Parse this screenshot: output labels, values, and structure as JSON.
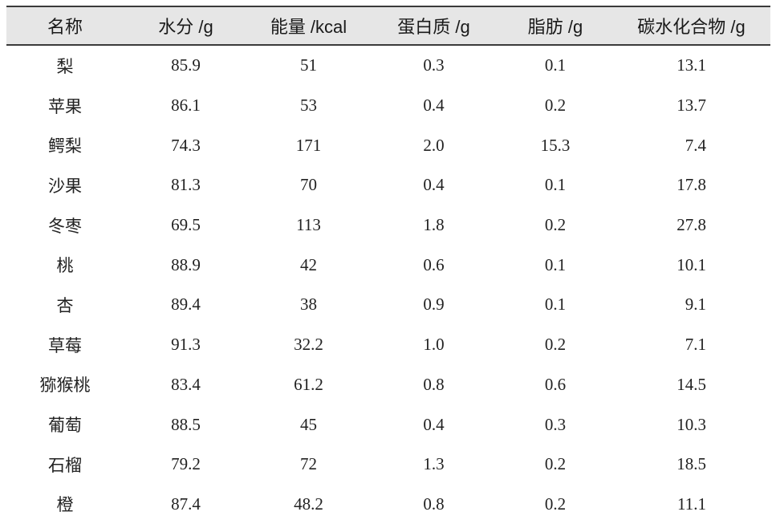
{
  "table": {
    "headers": [
      "名称",
      "水分 /g",
      "能量 /kcal",
      "蛋白质 /g",
      "脂肪 /g",
      "碳水化合物 /g"
    ],
    "rows": [
      [
        "梨",
        "85.9",
        "51",
        "0.3",
        "0.1",
        "13.1"
      ],
      [
        "苹果",
        "86.1",
        "53",
        "0.4",
        "0.2",
        "13.7"
      ],
      [
        "鳄梨",
        "74.3",
        "171",
        "2.0",
        "15.3",
        "7.4"
      ],
      [
        "沙果",
        "81.3",
        "70",
        "0.4",
        "0.1",
        "17.8"
      ],
      [
        "冬枣",
        "69.5",
        "113",
        "1.8",
        "0.2",
        "27.8"
      ],
      [
        "桃",
        "88.9",
        "42",
        "0.6",
        "0.1",
        "10.1"
      ],
      [
        "杏",
        "89.4",
        "38",
        "0.9",
        "0.1",
        "9.1"
      ],
      [
        "草莓",
        "91.3",
        "32.2",
        "1.0",
        "0.2",
        "7.1"
      ],
      [
        "猕猴桃",
        "83.4",
        "61.2",
        "0.8",
        "0.6",
        "14.5"
      ],
      [
        "葡萄",
        "88.5",
        "45",
        "0.4",
        "0.3",
        "10.3"
      ],
      [
        "石榴",
        "79.2",
        "72",
        "1.3",
        "0.2",
        "18.5"
      ],
      [
        "橙",
        "87.4",
        "48.2",
        "0.8",
        "0.2",
        "11.1"
      ]
    ]
  },
  "colors": {
    "header_background": "#e6e6e6",
    "rule": "#3a3a3a",
    "text": "#222222"
  }
}
